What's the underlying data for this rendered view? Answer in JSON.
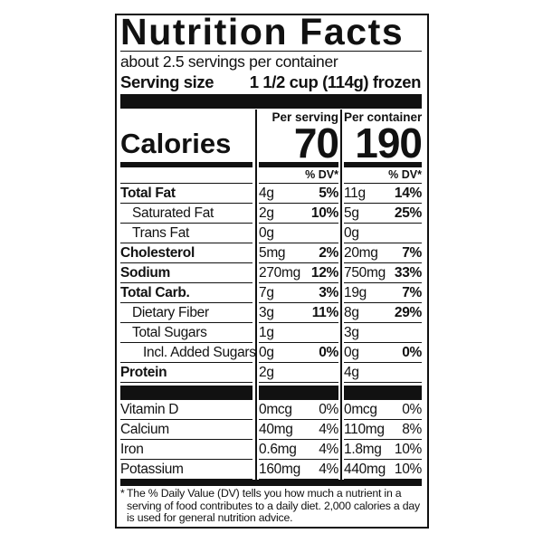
{
  "title": "Nutrition Facts",
  "servings_per_container": "about 2.5 servings per container",
  "serving_size_label": "Serving size",
  "serving_size_value": "1 1/2 cup (114g) frozen",
  "calories_label": "Calories",
  "columns": [
    {
      "header": "Per serving",
      "calories": "70",
      "dv_header": "% DV*"
    },
    {
      "header": "Per container",
      "calories": "190",
      "dv_header": "% DV*"
    }
  ],
  "nutrients": [
    {
      "label": "Total Fat",
      "bold": true,
      "indent": 0,
      "serving": {
        "amount": "4g",
        "dv": "5%"
      },
      "container": {
        "amount": "11g",
        "dv": "14%"
      }
    },
    {
      "label": "Saturated Fat",
      "bold": false,
      "indent": 1,
      "serving": {
        "amount": "2g",
        "dv": "10%"
      },
      "container": {
        "amount": "5g",
        "dv": "25%"
      }
    },
    {
      "label": "Trans Fat",
      "bold": false,
      "indent": 1,
      "serving": {
        "amount": "0g",
        "dv": ""
      },
      "container": {
        "amount": "0g",
        "dv": ""
      }
    },
    {
      "label": "Cholesterol",
      "bold": true,
      "indent": 0,
      "serving": {
        "amount": "5mg",
        "dv": "2%"
      },
      "container": {
        "amount": "20mg",
        "dv": "7%"
      }
    },
    {
      "label": "Sodium",
      "bold": true,
      "indent": 0,
      "serving": {
        "amount": "270mg",
        "dv": "12%"
      },
      "container": {
        "amount": "750mg",
        "dv": "33%"
      }
    },
    {
      "label": "Total Carb.",
      "bold": true,
      "indent": 0,
      "serving": {
        "amount": "7g",
        "dv": "3%"
      },
      "container": {
        "amount": "19g",
        "dv": "7%"
      }
    },
    {
      "label": "Dietary Fiber",
      "bold": false,
      "indent": 1,
      "serving": {
        "amount": "3g",
        "dv": "11%"
      },
      "container": {
        "amount": "8g",
        "dv": "29%"
      }
    },
    {
      "label": "Total Sugars",
      "bold": false,
      "indent": 1,
      "serving": {
        "amount": "1g",
        "dv": ""
      },
      "container": {
        "amount": "3g",
        "dv": ""
      }
    },
    {
      "label": "Incl. Added Sugars",
      "bold": false,
      "indent": 2,
      "serving": {
        "amount": "0g",
        "dv": "0%"
      },
      "container": {
        "amount": "0g",
        "dv": "0%"
      }
    },
    {
      "label": "Protein",
      "bold": true,
      "indent": 0,
      "serving": {
        "amount": "2g",
        "dv": ""
      },
      "container": {
        "amount": "4g",
        "dv": ""
      }
    }
  ],
  "vitamins": [
    {
      "label": "Vitamin D",
      "serving": {
        "amount": "0mcg",
        "dv": "0%"
      },
      "container": {
        "amount": "0mcg",
        "dv": "0%"
      }
    },
    {
      "label": "Calcium",
      "serving": {
        "amount": "40mg",
        "dv": "4%"
      },
      "container": {
        "amount": "110mg",
        "dv": "8%"
      }
    },
    {
      "label": "Iron",
      "serving": {
        "amount": "0.6mg",
        "dv": "4%"
      },
      "container": {
        "amount": "1.8mg",
        "dv": "10%"
      }
    },
    {
      "label": "Potassium",
      "serving": {
        "amount": "160mg",
        "dv": "4%"
      },
      "container": {
        "amount": "440mg",
        "dv": "10%"
      }
    }
  ],
  "footnote_marker": "*",
  "footnote": "The % Daily Value (DV) tells you how much a nutrient in a serving of food contributes to a daily diet. 2,000 calories a day is used for general nutrition advice."
}
